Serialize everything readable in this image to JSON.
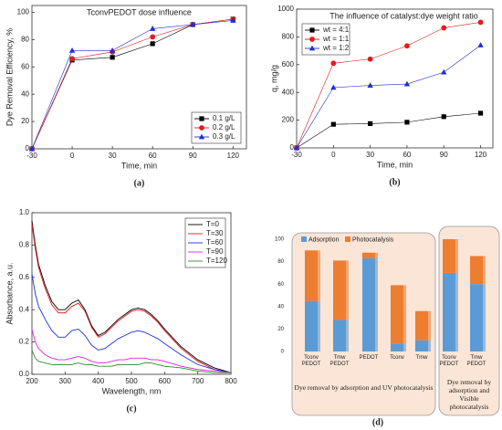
{
  "chart_data": [
    {
      "type": "line",
      "title": "TconvPEDOT dose influence",
      "xlabel": "Time, min",
      "ylabel": "Dye Removal Efficiency, %",
      "caption": "(a)",
      "x": [
        -30,
        0,
        30,
        60,
        90,
        120
      ],
      "xlim": [
        -30,
        130
      ],
      "xticks": [
        -30,
        0,
        30,
        60,
        90,
        120
      ],
      "ylim": [
        0,
        105
      ],
      "yticks": [
        0,
        20,
        40,
        60,
        80,
        100
      ],
      "legend": "lower right",
      "series": [
        {
          "name": "0.1 g/L",
          "color": "#000000",
          "marker": "square",
          "values": [
            0,
            65,
            67,
            77,
            91,
            95
          ]
        },
        {
          "name": "0.2 g/L",
          "color": "#e41a1c",
          "marker": "circle",
          "values": [
            0,
            66,
            71,
            82,
            91,
            95
          ]
        },
        {
          "name": "0.3 g/L",
          "color": "#1f2fd6",
          "marker": "triangle",
          "values": [
            0,
            72,
            72,
            88,
            91,
            94
          ]
        }
      ]
    },
    {
      "type": "line",
      "title": "The influence of catalyst:dye weight ratio",
      "xlabel": "Time, min",
      "ylabel": "q, mg/g",
      "caption": "(b)",
      "x": [
        -30,
        0,
        30,
        60,
        90,
        120
      ],
      "xlim": [
        -30,
        130
      ],
      "xticks": [
        -30,
        0,
        30,
        60,
        90,
        120
      ],
      "ylim": [
        0,
        1000
      ],
      "yticks": [
        0,
        200,
        400,
        600,
        800,
        1000
      ],
      "legend": "upper left",
      "series": [
        {
          "name": "wt = 4:1",
          "color": "#000000",
          "marker": "square",
          "values": [
            0,
            170,
            175,
            185,
            225,
            250
          ]
        },
        {
          "name": "wt = 1:1",
          "color": "#e41a1c",
          "marker": "circle",
          "values": [
            0,
            610,
            640,
            735,
            865,
            905
          ]
        },
        {
          "name": "wt = 1:2",
          "color": "#1f2fd6",
          "marker": "triangle",
          "values": [
            0,
            435,
            450,
            460,
            545,
            740
          ]
        }
      ]
    },
    {
      "type": "line",
      "xlabel": "Wavelength, nm",
      "ylabel": "Absorbance, a.u.",
      "caption": "(c)",
      "x": [
        200,
        210,
        220,
        240,
        260,
        280,
        300,
        320,
        340,
        360,
        380,
        400,
        420,
        440,
        460,
        480,
        500,
        520,
        540,
        560,
        580,
        600,
        650,
        700,
        750,
        800
      ],
      "xlim": [
        200,
        800
      ],
      "xticks": [
        200,
        300,
        400,
        500,
        600,
        700,
        800
      ],
      "ylim": [
        0,
        1.0
      ],
      "yticks": [
        {
          "value": 0,
          "label": "0.0"
        },
        0.2,
        0.4,
        0.6,
        0.8,
        {
          "value": 1,
          "label": "1.0"
        }
      ],
      "legend": "upper right",
      "series": [
        {
          "name": "T=0",
          "color": "#000000",
          "values": [
            0.95,
            0.8,
            0.68,
            0.55,
            0.45,
            0.4,
            0.4,
            0.44,
            0.46,
            0.4,
            0.3,
            0.24,
            0.26,
            0.3,
            0.34,
            0.37,
            0.4,
            0.41,
            0.4,
            0.37,
            0.33,
            0.28,
            0.17,
            0.09,
            0.04,
            0.01
          ]
        },
        {
          "name": "T=30",
          "color": "#e41a1c",
          "values": [
            0.93,
            0.78,
            0.66,
            0.53,
            0.43,
            0.38,
            0.38,
            0.42,
            0.44,
            0.39,
            0.29,
            0.23,
            0.25,
            0.29,
            0.33,
            0.36,
            0.39,
            0.4,
            0.39,
            0.36,
            0.32,
            0.27,
            0.16,
            0.08,
            0.03,
            0.01
          ]
        },
        {
          "name": "T=60",
          "color": "#1f2fd6",
          "values": [
            0.62,
            0.5,
            0.42,
            0.34,
            0.27,
            0.23,
            0.23,
            0.27,
            0.28,
            0.24,
            0.18,
            0.15,
            0.16,
            0.19,
            0.22,
            0.24,
            0.26,
            0.27,
            0.26,
            0.24,
            0.22,
            0.19,
            0.12,
            0.06,
            0.03,
            0.01
          ]
        },
        {
          "name": "T=90",
          "color": "#e020e0",
          "values": [
            0.28,
            0.2,
            0.16,
            0.12,
            0.1,
            0.09,
            0.09,
            0.1,
            0.11,
            0.1,
            0.08,
            0.07,
            0.07,
            0.08,
            0.09,
            0.09,
            0.1,
            0.1,
            0.1,
            0.09,
            0.09,
            0.08,
            0.05,
            0.03,
            0.02,
            0.01
          ]
        },
        {
          "name": "T=120",
          "color": "#2e8b2e",
          "values": [
            0.15,
            0.1,
            0.08,
            0.07,
            0.06,
            0.06,
            0.06,
            0.06,
            0.07,
            0.06,
            0.06,
            0.05,
            0.05,
            0.05,
            0.06,
            0.06,
            0.06,
            0.06,
            0.07,
            0.07,
            0.06,
            0.05,
            0.04,
            0.02,
            0.01,
            0.01
          ]
        }
      ]
    },
    {
      "type": "stacked_bar",
      "caption": "(d)",
      "legend": "upper left",
      "categories": [
        "Tconv PEDOT",
        "Tmw PEDOT",
        "PEDOT",
        "Tconv",
        "Tmw",
        "Tconv PEDOT",
        "Tmw PEDOT"
      ],
      "ylim": [
        0,
        100
      ],
      "yticks": [
        0,
        20,
        40,
        60,
        80,
        100
      ],
      "annotations": [
        "Dye removal by adsorption and UV photocatalysis",
        "Dye removal by adsorption and Visible photocatalysis"
      ],
      "series": [
        {
          "name": "Adsorption",
          "color": "#5b9bd5",
          "values": [
            45,
            28,
            83,
            7,
            10,
            70,
            60
          ]
        },
        {
          "name": "Photocatalysis",
          "color": "#ed7d31",
          "values": [
            45,
            53,
            5,
            52,
            26,
            30,
            25
          ]
        }
      ]
    }
  ]
}
